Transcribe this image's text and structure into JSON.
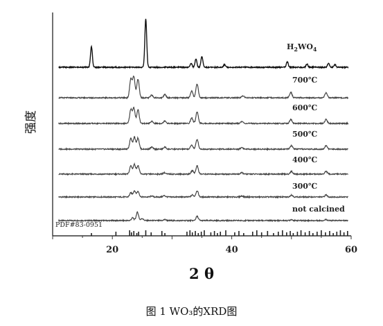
{
  "chart_data": {
    "type": "line",
    "ylabel": "强度",
    "xlabel": "2 θ",
    "xlim": [
      10,
      60
    ],
    "xticks": [
      20,
      40,
      60
    ],
    "grid": false,
    "legend": "labels on the right of each curve",
    "reference": {
      "name": "PDF#83-0951",
      "lines": [
        16.5,
        20.6,
        22.9,
        23.2,
        23.6,
        24.1,
        24.4,
        25.6,
        26.5,
        28.3,
        28.8,
        32.5,
        33.0,
        33.4,
        33.9,
        34.4,
        34.9,
        35.4,
        36.5,
        37.1,
        37.6,
        38.1,
        39.0,
        40.5,
        41.2,
        42.0,
        43.5,
        44.2,
        45.0,
        46.0,
        47.0,
        47.8,
        48.5,
        49.2,
        49.8,
        50.3,
        51.0,
        51.6,
        52.3,
        53.0,
        53.6,
        54.3,
        55.0,
        55.7,
        56.4,
        57.0,
        57.6,
        58.2,
        58.8,
        59.4
      ]
    },
    "series": [
      {
        "name": "not calcined",
        "peaks": [
          [
            23.4,
            4
          ],
          [
            24.2,
            12
          ],
          [
            25.0,
            3
          ],
          [
            28.8,
            1.5
          ],
          [
            34.2,
            6
          ],
          [
            50.0,
            1.5
          ],
          [
            55.8,
            1.5
          ]
        ]
      },
      {
        "name": "300℃",
        "peaks": [
          [
            23.1,
            6
          ],
          [
            23.7,
            9
          ],
          [
            24.3,
            8
          ],
          [
            26.6,
            1.5
          ],
          [
            28.7,
            2
          ],
          [
            33.4,
            3
          ],
          [
            34.2,
            9
          ],
          [
            41.7,
            1.5
          ],
          [
            50.0,
            3
          ],
          [
            55.8,
            3
          ]
        ]
      },
      {
        "name": "400℃",
        "peaks": [
          [
            23.1,
            12
          ],
          [
            23.7,
            14
          ],
          [
            24.3,
            12
          ],
          [
            28.7,
            2
          ],
          [
            33.4,
            5
          ],
          [
            34.2,
            12
          ],
          [
            41.7,
            2
          ],
          [
            50.0,
            4
          ],
          [
            55.8,
            4
          ]
        ]
      },
      {
        "name": "500℃",
        "peaks": [
          [
            23.1,
            16
          ],
          [
            23.7,
            17
          ],
          [
            24.3,
            16
          ],
          [
            26.6,
            3
          ],
          [
            28.8,
            3
          ],
          [
            33.3,
            6
          ],
          [
            34.2,
            14
          ],
          [
            41.7,
            2.5
          ],
          [
            50.0,
            5
          ],
          [
            55.8,
            5
          ]
        ]
      },
      {
        "name": "600℃",
        "peaks": [
          [
            23.1,
            20
          ],
          [
            23.6,
            22
          ],
          [
            24.3,
            20
          ],
          [
            26.6,
            3
          ],
          [
            28.8,
            4
          ],
          [
            33.3,
            8
          ],
          [
            34.2,
            17
          ],
          [
            41.7,
            3
          ],
          [
            49.9,
            6
          ],
          [
            55.8,
            6
          ]
        ]
      },
      {
        "name": "700℃",
        "peaks": [
          [
            23.1,
            27
          ],
          [
            23.6,
            30
          ],
          [
            24.3,
            27
          ],
          [
            26.6,
            4
          ],
          [
            28.8,
            5
          ],
          [
            33.3,
            10
          ],
          [
            34.2,
            20
          ],
          [
            41.9,
            3
          ],
          [
            49.9,
            8
          ],
          [
            55.8,
            7
          ]
        ]
      },
      {
        "name": "H2WO4",
        "peaks": [
          [
            16.5,
            30
          ],
          [
            25.6,
            70
          ],
          [
            34.0,
            12
          ],
          [
            35.0,
            16
          ],
          [
            33.2,
            6
          ],
          [
            38.8,
            4
          ],
          [
            49.3,
            8
          ],
          [
            52.6,
            5
          ],
          [
            56.2,
            6
          ],
          [
            57.3,
            4
          ]
        ]
      }
    ]
  },
  "caption": "图 1 WO₃的XRD图"
}
